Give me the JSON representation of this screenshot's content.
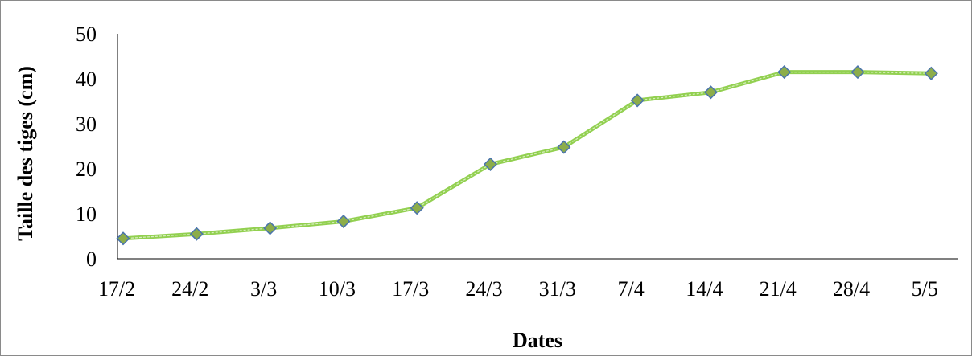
{
  "chart_data": {
    "type": "line",
    "title": "",
    "xlabel": "Dates",
    "ylabel": "Taille des tiges (cm)",
    "ylim": [
      0,
      50
    ],
    "yticks": [
      "0",
      "10",
      "20",
      "30",
      "40",
      "50"
    ],
    "categories": [
      "17/2",
      "24/2",
      "3/3",
      "10/3",
      "17/3",
      "24/3",
      "31/3",
      "7/4",
      "14/4",
      "21/4",
      "28/4",
      "5/5"
    ],
    "series": [
      {
        "values": [
          4.5,
          5.5,
          6.8,
          8.3,
          11.3,
          21.0,
          24.8,
          35.2,
          37.0,
          41.5,
          41.5,
          41.2
        ]
      }
    ],
    "grid": false,
    "legend": "none",
    "colors": {
      "line": "#92d050",
      "marker_fill": "#8cad4a",
      "marker_stroke": "#4a74ad",
      "axis": "#000000"
    }
  }
}
